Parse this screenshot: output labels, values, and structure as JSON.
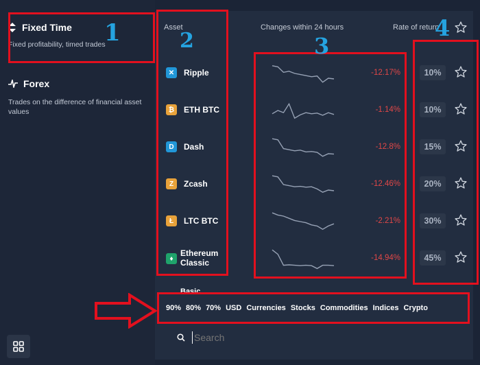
{
  "sidebar": {
    "modes": [
      {
        "title": "Fixed Time",
        "desc": "Fixed profitability, timed trades",
        "icon": "up-down-arrows-icon"
      },
      {
        "title": "Forex",
        "desc": "Trades on the difference of financial asset values",
        "icon": "zigzag-icon"
      }
    ],
    "grid_icon": "grid-icon"
  },
  "table": {
    "headers": {
      "asset": "Asset",
      "changes": "Changes within 24 hours",
      "rate": "Rate of return"
    },
    "rows": [
      {
        "asset": "Ripple",
        "change": "-12.17%",
        "rate": "10%",
        "icon_color": "#2197d8",
        "icon_glyph": "✕",
        "spark": [
          0.15,
          0.2,
          0.45,
          0.4,
          0.5,
          0.55,
          0.6,
          0.65,
          0.62,
          0.9,
          0.72,
          0.75
        ]
      },
      {
        "asset": "ETH BTC",
        "change": "-1.14%",
        "rate": "10%",
        "icon_color": "#e8a23a",
        "icon_glyph": "₿",
        "spark": [
          0.65,
          0.5,
          0.6,
          0.2,
          0.85,
          0.7,
          0.6,
          0.65,
          0.62,
          0.72,
          0.6,
          0.68
        ]
      },
      {
        "asset": "Dash",
        "change": "-12.8%",
        "rate": "15%",
        "icon_color": "#2197d8",
        "icon_glyph": "D",
        "spark": [
          0.1,
          0.15,
          0.55,
          0.6,
          0.65,
          0.62,
          0.7,
          0.68,
          0.72,
          0.9,
          0.78,
          0.8
        ]
      },
      {
        "asset": "Zcash",
        "change": "-12.46%",
        "rate": "20%",
        "icon_color": "#e8a23a",
        "icon_glyph": "Z",
        "spark": [
          0.1,
          0.15,
          0.5,
          0.55,
          0.6,
          0.58,
          0.62,
          0.6,
          0.7,
          0.85,
          0.75,
          0.78
        ]
      },
      {
        "asset": "LTC BTC",
        "change": "-2.21%",
        "rate": "30%",
        "icon_color": "#e8a23a",
        "icon_glyph": "Ł",
        "spark": [
          0.1,
          0.2,
          0.25,
          0.35,
          0.45,
          0.5,
          0.55,
          0.65,
          0.7,
          0.85,
          0.7,
          0.6
        ]
      },
      {
        "asset": "Ethereum Classic",
        "change": "-14.94%",
        "rate": "45%",
        "icon_color": "#1fa36b",
        "icon_glyph": "♦",
        "spark": [
          0.1,
          0.3,
          0.8,
          0.78,
          0.8,
          0.82,
          0.8,
          0.82,
          0.95,
          0.8,
          0.8,
          0.82
        ]
      }
    ],
    "partial_row": "Basic"
  },
  "filters": [
    "90%",
    "80%",
    "70%",
    "USD",
    "Currencies",
    "Stocks",
    "Commodities",
    "Indices",
    "Crypto"
  ],
  "search": {
    "placeholder": "Search",
    "icon": "search-icon"
  },
  "annotations": {
    "n1": "1",
    "n2": "2",
    "n3": "3",
    "n4": "4",
    "arrow": "right-arrow-icon"
  },
  "colors": {
    "negative": "#e04747",
    "annotation_box": "#e3101e",
    "annotation_number": "#25a3e0"
  }
}
